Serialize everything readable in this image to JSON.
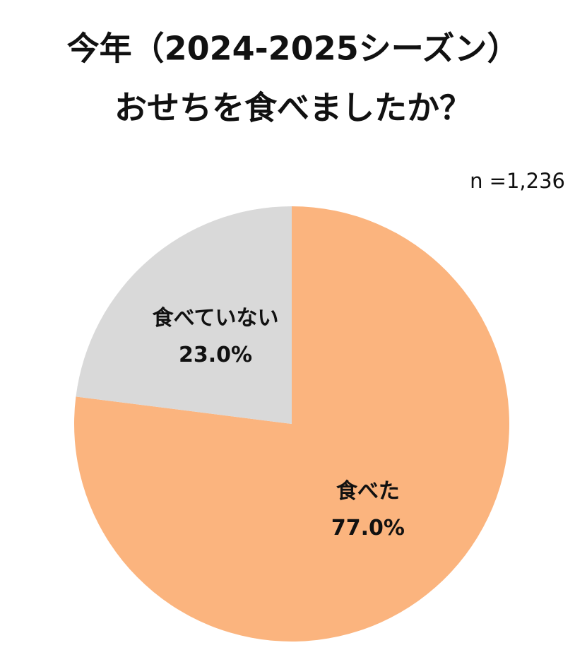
{
  "chart_data": {
    "type": "pie",
    "title": [
      "今年（2024-2025シーズン）",
      "おせちを食べましたか？"
    ],
    "annotation": "n =1,236",
    "categories": [
      "食べた",
      "食べていない"
    ],
    "values": [
      77.0,
      23.0
    ],
    "value_labels": [
      "77.0%",
      "23.0%"
    ],
    "colors": [
      "#fbb47e",
      "#d9d9d9"
    ],
    "start_angle": "top",
    "direction": "clockwise"
  }
}
